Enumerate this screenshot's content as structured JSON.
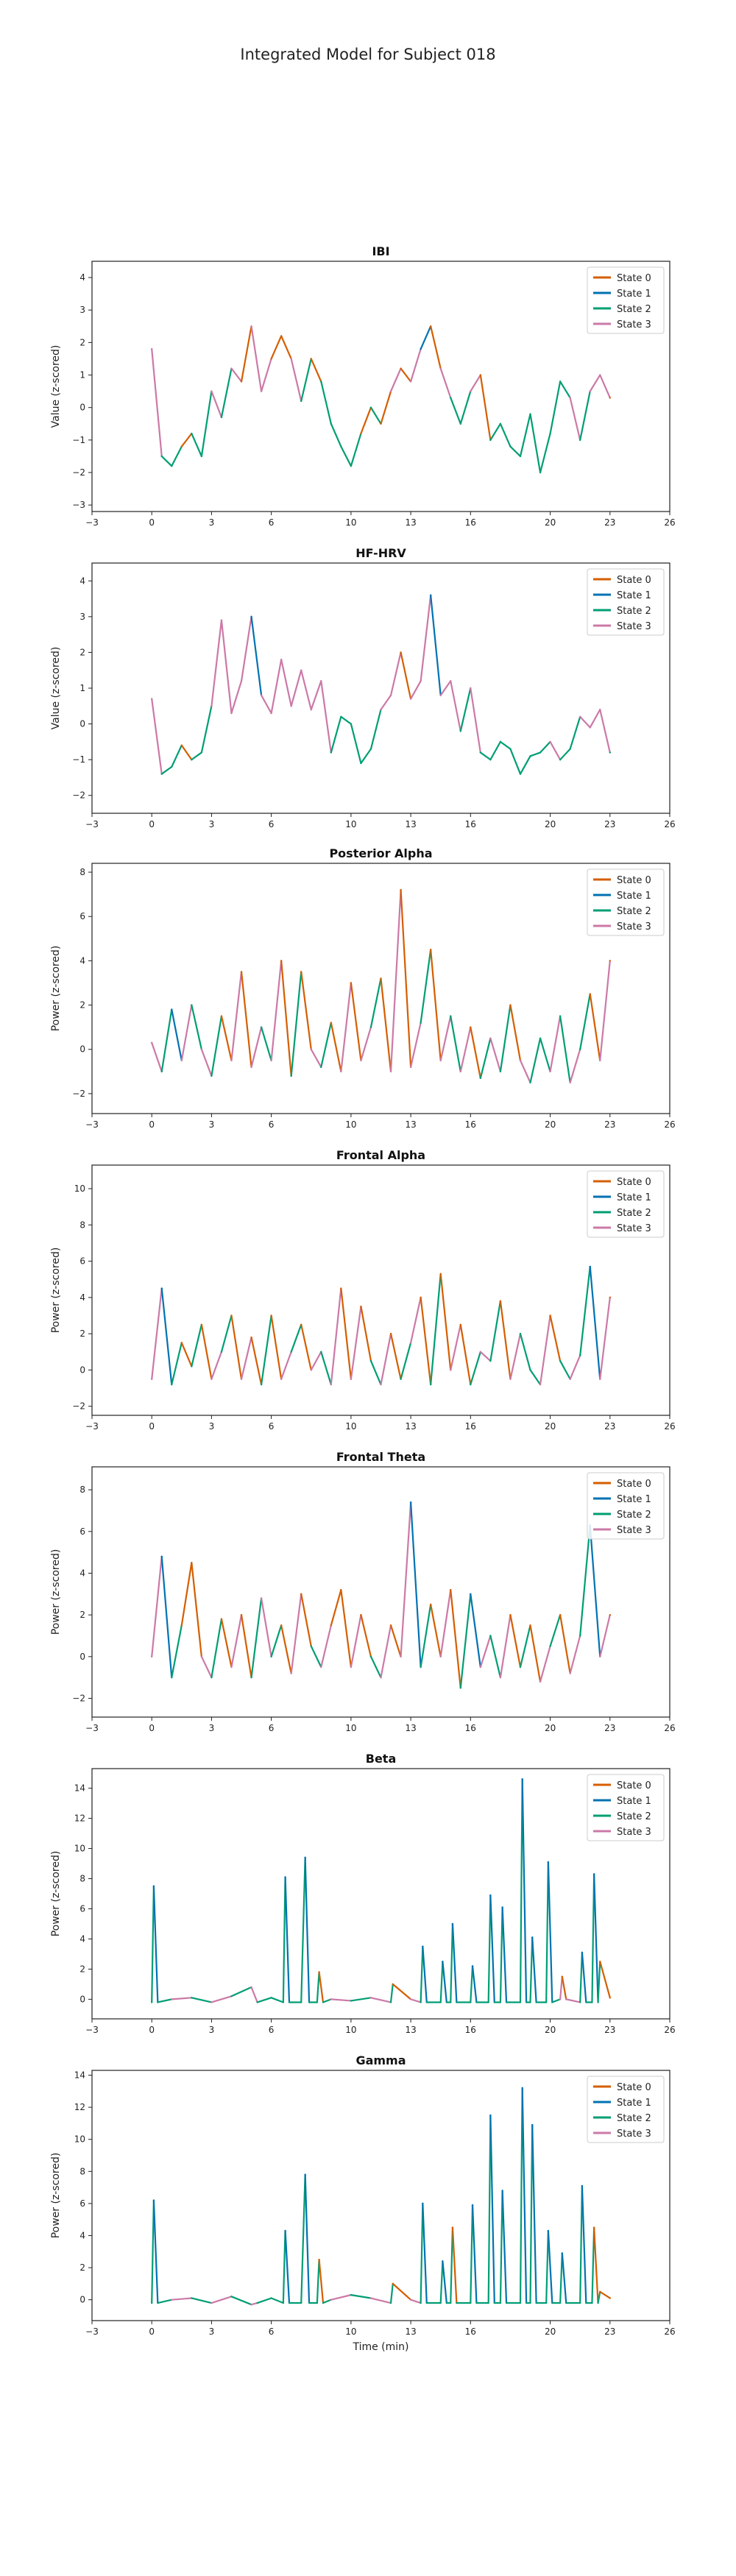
{
  "figure": {
    "title": "Integrated Model for Subject 018"
  },
  "state_colors": {
    "State 0": "#D55E00",
    "State 1": "#0072B2",
    "State 2": "#009E73",
    "State 3": "#CC79A7"
  },
  "chart_data": [
    {
      "type": "line",
      "title": "IBI",
      "xlabel": "",
      "ylabel": "Value (z-scored)",
      "xlim": [
        -3,
        26
      ],
      "ylim": [
        -3.2,
        4.5
      ],
      "xticks": [
        -3,
        0,
        3,
        6,
        10,
        13,
        16,
        20,
        23,
        26
      ],
      "yticks": [
        -3,
        -2,
        -1,
        0,
        1,
        2,
        3,
        4
      ],
      "legend": {
        "placement": "top-right",
        "entries": [
          "State 0",
          "State 1",
          "State 2",
          "State 3"
        ]
      },
      "grid": false,
      "x": [
        0,
        0.5,
        1,
        1.5,
        2,
        2.5,
        3,
        3.5,
        4,
        4.5,
        5,
        5.5,
        6,
        6.5,
        7,
        7.5,
        8,
        8.5,
        9,
        9.5,
        10,
        10.5,
        11,
        11.5,
        12,
        12.5,
        13,
        13.5,
        14,
        14.5,
        15,
        15.5,
        16,
        16.5,
        17,
        17.5,
        18,
        18.5,
        19,
        19.5,
        20,
        20.5,
        21,
        21.5,
        22,
        22.5,
        23
      ],
      "y": [
        1.8,
        -1.5,
        -1.8,
        -1.2,
        -0.8,
        -1.5,
        0.5,
        -0.3,
        1.2,
        0.8,
        2.5,
        0.5,
        1.5,
        2.2,
        1.5,
        0.2,
        1.5,
        0.8,
        -0.5,
        -1.2,
        -1.8,
        -0.8,
        0.0,
        -0.5,
        0.5,
        1.2,
        0.8,
        1.8,
        2.5,
        1.2,
        0.3,
        -0.5,
        0.5,
        1.0,
        -1.0,
        -0.5,
        -1.2,
        -1.5,
        -0.2,
        -2.0,
        -0.8,
        0.8,
        0.3,
        -1.0,
        0.5,
        1.0,
        0.3
      ],
      "states": [
        3,
        2,
        2,
        0,
        2,
        2,
        3,
        2,
        3,
        0,
        3,
        3,
        0,
        0,
        3,
        2,
        0,
        2,
        2,
        2,
        2,
        0,
        2,
        0,
        3,
        0,
        3,
        1,
        0,
        3,
        2,
        2,
        3,
        0,
        2,
        2,
        2,
        2,
        2,
        2,
        2,
        2,
        3,
        2,
        3,
        3,
        0
      ]
    },
    {
      "type": "line",
      "title": "HF-HRV",
      "xlabel": "",
      "ylabel": "Value (z-scored)",
      "xlim": [
        -3,
        26
      ],
      "ylim": [
        -2.5,
        4.5
      ],
      "xticks": [
        -3,
        0,
        3,
        6,
        10,
        13,
        16,
        20,
        23,
        26
      ],
      "yticks": [
        -2,
        -1,
        0,
        1,
        2,
        3,
        4
      ],
      "legend": {
        "placement": "top-right",
        "entries": [
          "State 0",
          "State 1",
          "State 2",
          "State 3"
        ]
      },
      "grid": false,
      "x": [
        0,
        0.5,
        1,
        1.5,
        2,
        2.5,
        3,
        3.5,
        4,
        4.5,
        5,
        5.5,
        6,
        6.5,
        7,
        7.5,
        8,
        8.5,
        9,
        9.5,
        10,
        10.5,
        11,
        11.5,
        12,
        12.5,
        13,
        13.5,
        14,
        14.5,
        15,
        15.5,
        16,
        16.5,
        17,
        17.5,
        18,
        18.5,
        19,
        19.5,
        20,
        20.5,
        21,
        21.5,
        22,
        22.5,
        23
      ],
      "y": [
        0.7,
        -1.4,
        -1.2,
        -0.6,
        -1.0,
        -0.8,
        0.5,
        2.9,
        0.3,
        1.2,
        3.0,
        0.8,
        0.3,
        1.8,
        0.5,
        1.5,
        0.4,
        1.2,
        -0.8,
        0.2,
        0.0,
        -1.1,
        -0.7,
        0.4,
        0.8,
        2.0,
        0.7,
        1.2,
        3.6,
        0.8,
        1.2,
        -0.2,
        1.0,
        -0.8,
        -1.0,
        -0.5,
        -0.7,
        -1.4,
        -0.9,
        -0.8,
        -0.5,
        -1.0,
        -0.7,
        0.2,
        -0.1,
        0.4,
        -0.8
      ],
      "states": [
        3,
        2,
        2,
        0,
        2,
        2,
        3,
        3,
        3,
        3,
        1,
        3,
        3,
        3,
        3,
        3,
        3,
        3,
        2,
        2,
        2,
        2,
        2,
        3,
        3,
        0,
        3,
        3,
        1,
        3,
        3,
        2,
        3,
        2,
        2,
        2,
        2,
        2,
        2,
        2,
        3,
        2,
        2,
        3,
        3,
        3,
        2
      ]
    },
    {
      "type": "line",
      "title": "Posterior Alpha",
      "xlabel": "",
      "ylabel": "Power (z-scored)",
      "xlim": [
        -3,
        26
      ],
      "ylim": [
        -2.9,
        8.4
      ],
      "xticks": [
        -3,
        0,
        3,
        6,
        10,
        13,
        16,
        20,
        23,
        26
      ],
      "yticks": [
        -2,
        0,
        2,
        4,
        6,
        8
      ],
      "legend": {
        "placement": "top-right",
        "entries": [
          "State 0",
          "State 1",
          "State 2",
          "State 3"
        ]
      },
      "grid": false,
      "x": [
        0,
        0.5,
        1,
        1.5,
        2,
        2.5,
        3,
        3.5,
        4,
        4.5,
        5,
        5.5,
        6,
        6.5,
        7,
        7.5,
        8,
        8.5,
        9,
        9.5,
        10,
        10.5,
        11,
        11.5,
        12,
        12.5,
        13,
        13.5,
        14,
        14.5,
        15,
        15.5,
        16,
        16.5,
        17,
        17.5,
        18,
        18.5,
        19,
        19.5,
        20,
        20.5,
        21,
        21.5,
        22,
        22.5,
        23
      ],
      "y": [
        0.3,
        -1.0,
        1.8,
        -0.5,
        2.0,
        0.0,
        -1.2,
        1.5,
        -0.5,
        3.5,
        -0.8,
        1.0,
        -0.5,
        4.0,
        -1.2,
        3.5,
        0.0,
        -0.8,
        1.2,
        -1.0,
        3.0,
        -0.5,
        1.0,
        3.2,
        -1.0,
        7.2,
        -0.8,
        1.2,
        4.5,
        -0.5,
        1.5,
        -1.0,
        1.0,
        -1.3,
        0.5,
        -1.0,
        2.0,
        -0.5,
        -1.5,
        0.5,
        -1.0,
        1.5,
        -1.5,
        0.0,
        2.5,
        -0.5,
        4.0
      ],
      "states": [
        3,
        2,
        1,
        3,
        2,
        3,
        2,
        0,
        3,
        0,
        3,
        2,
        3,
        0,
        2,
        0,
        3,
        2,
        0,
        3,
        0,
        3,
        2,
        0,
        3,
        0,
        3,
        2,
        0,
        3,
        2,
        3,
        0,
        2,
        3,
        2,
        0,
        3,
        2,
        2,
        3,
        2,
        3,
        2,
        0,
        3,
        0
      ]
    },
    {
      "type": "line",
      "title": "Frontal Alpha",
      "xlabel": "",
      "ylabel": "Power (z-scored)",
      "xlim": [
        -3,
        26
      ],
      "ylim": [
        -2.5,
        11.3
      ],
      "xticks": [
        -3,
        0,
        3,
        6,
        10,
        13,
        16,
        20,
        23,
        26
      ],
      "yticks": [
        -2,
        0,
        2,
        4,
        6,
        8,
        10
      ],
      "legend": {
        "placement": "top-right",
        "entries": [
          "State 0",
          "State 1",
          "State 2",
          "State 3"
        ]
      },
      "grid": false,
      "x": [
        0,
        0.5,
        1,
        1.5,
        2,
        2.5,
        3,
        3.5,
        4,
        4.5,
        5,
        5.5,
        6,
        6.5,
        7,
        7.5,
        8,
        8.5,
        9,
        9.5,
        10,
        10.5,
        11,
        11.5,
        12,
        12.5,
        13,
        13.5,
        14,
        14.5,
        15,
        15.5,
        16,
        16.5,
        17,
        17.5,
        18,
        18.5,
        19,
        19.5,
        20,
        20.5,
        21,
        21.5,
        22,
        22.5,
        23
      ],
      "y": [
        -0.5,
        4.5,
        -0.8,
        1.5,
        0.2,
        2.5,
        -0.5,
        1.0,
        3.0,
        -0.5,
        1.8,
        -0.8,
        3.0,
        -0.5,
        1.0,
        2.5,
        0.0,
        1.0,
        -0.8,
        4.5,
        -0.5,
        3.5,
        0.5,
        -0.8,
        2.0,
        -0.5,
        1.5,
        4.0,
        -0.8,
        5.3,
        0.0,
        2.5,
        -0.8,
        1.0,
        0.5,
        3.8,
        -0.5,
        2.0,
        0.0,
        -0.8,
        3.0,
        0.5,
        -0.5,
        0.8,
        5.7,
        -0.5,
        4.0
      ],
      "states": [
        3,
        1,
        2,
        0,
        2,
        0,
        3,
        2,
        0,
        3,
        0,
        2,
        0,
        3,
        2,
        0,
        3,
        2,
        3,
        0,
        3,
        0,
        2,
        3,
        0,
        2,
        3,
        0,
        2,
        0,
        3,
        0,
        2,
        3,
        2,
        0,
        3,
        2,
        2,
        3,
        0,
        2,
        3,
        2,
        1,
        3,
        0
      ]
    },
    {
      "type": "line",
      "title": "Frontal Theta",
      "xlabel": "",
      "ylabel": "Power (z-scored)",
      "xlim": [
        -3,
        26
      ],
      "ylim": [
        -2.9,
        9.1
      ],
      "xticks": [
        -3,
        0,
        3,
        6,
        10,
        13,
        16,
        20,
        23,
        26
      ],
      "yticks": [
        -2,
        0,
        2,
        4,
        6,
        8
      ],
      "legend": {
        "placement": "top-right",
        "entries": [
          "State 0",
          "State 1",
          "State 2",
          "State 3"
        ]
      },
      "grid": false,
      "x": [
        0,
        0.5,
        1,
        1.5,
        2,
        2.5,
        3,
        3.5,
        4,
        4.5,
        5,
        5.5,
        6,
        6.5,
        7,
        7.5,
        8,
        8.5,
        9,
        9.5,
        10,
        10.5,
        11,
        11.5,
        12,
        12.5,
        13,
        13.5,
        14,
        14.5,
        15,
        15.5,
        16,
        16.5,
        17,
        17.5,
        18,
        18.5,
        19,
        19.5,
        20,
        20.5,
        21,
        21.5,
        22,
        22.5,
        23
      ],
      "y": [
        0.0,
        4.8,
        -1.0,
        1.5,
        4.5,
        0.0,
        -1.0,
        1.8,
        -0.5,
        2.0,
        -1.0,
        2.8,
        0.0,
        1.5,
        -0.8,
        3.0,
        0.5,
        -0.5,
        1.5,
        3.2,
        -0.5,
        2.0,
        0.0,
        -1.0,
        1.5,
        0.0,
        7.4,
        -0.5,
        2.5,
        0.0,
        3.2,
        -1.5,
        3.0,
        -0.5,
        1.0,
        -1.0,
        2.0,
        -0.5,
        1.5,
        -1.2,
        0.5,
        2.0,
        -0.8,
        1.0,
        6.3,
        0.0,
        2.0
      ],
      "states": [
        3,
        1,
        2,
        0,
        0,
        3,
        2,
        0,
        3,
        0,
        2,
        3,
        2,
        0,
        3,
        0,
        2,
        3,
        0,
        0,
        3,
        0,
        2,
        3,
        0,
        3,
        1,
        2,
        0,
        3,
        0,
        2,
        1,
        3,
        2,
        3,
        0,
        2,
        0,
        3,
        2,
        0,
        3,
        2,
        1,
        3,
        0
      ]
    },
    {
      "type": "line",
      "title": "Beta",
      "xlabel": "",
      "ylabel": "Power (z-scored)",
      "xlim": [
        -3,
        26
      ],
      "ylim": [
        -1.3,
        15.3
      ],
      "xticks": [
        -3,
        0,
        3,
        6,
        10,
        13,
        16,
        20,
        23,
        26
      ],
      "yticks": [
        0,
        2,
        4,
        6,
        8,
        10,
        12,
        14
      ],
      "legend": {
        "placement": "top-right",
        "entries": [
          "State 0",
          "State 1",
          "State 2",
          "State 3"
        ]
      },
      "grid": false,
      "x": [
        0,
        0.1,
        0.3,
        1,
        2,
        3,
        4,
        5,
        5.3,
        6,
        6.6,
        6.7,
        6.9,
        7.5,
        7.7,
        7.9,
        8.3,
        8.4,
        8.6,
        9,
        10,
        11,
        12,
        12.1,
        13,
        13.5,
        13.6,
        13.8,
        14.5,
        14.6,
        14.8,
        15,
        15.1,
        15.3,
        16,
        16.1,
        16.3,
        16.9,
        17,
        17.2,
        17.5,
        17.6,
        17.8,
        18.5,
        18.6,
        18.8,
        19,
        19.1,
        19.3,
        19.8,
        19.9,
        20.1,
        20.5,
        20.6,
        20.8,
        21.5,
        21.6,
        21.8,
        22.1,
        22.2,
        22.4,
        22.5,
        23
      ],
      "y": [
        -0.2,
        7.5,
        -0.2,
        0.0,
        0.1,
        -0.2,
        0.2,
        0.8,
        -0.2,
        0.1,
        -0.2,
        8.1,
        -0.2,
        -0.2,
        9.4,
        -0.2,
        -0.2,
        1.8,
        -0.2,
        0.0,
        -0.1,
        0.1,
        -0.2,
        1.0,
        0.0,
        -0.2,
        3.5,
        -0.2,
        -0.2,
        2.5,
        -0.2,
        -0.2,
        5.0,
        -0.2,
        -0.2,
        2.2,
        -0.2,
        -0.2,
        6.9,
        -0.2,
        -0.2,
        6.1,
        -0.2,
        -0.2,
        14.6,
        -0.2,
        -0.2,
        4.1,
        -0.2,
        -0.2,
        9.1,
        -0.2,
        0.0,
        1.5,
        0.0,
        -0.2,
        3.1,
        -0.2,
        -0.2,
        8.3,
        -0.2,
        2.5,
        0.1
      ],
      "states": [
        2,
        1,
        2,
        3,
        2,
        3,
        2,
        3,
        2,
        2,
        2,
        1,
        2,
        2,
        1,
        2,
        2,
        0,
        2,
        3,
        2,
        3,
        2,
        0,
        3,
        2,
        1,
        2,
        2,
        1,
        2,
        2,
        1,
        2,
        2,
        1,
        2,
        2,
        1,
        2,
        2,
        1,
        2,
        2,
        1,
        2,
        2,
        1,
        2,
        2,
        1,
        2,
        3,
        0,
        3,
        2,
        1,
        2,
        2,
        1,
        2,
        0,
        0
      ]
    },
    {
      "type": "line",
      "title": "Gamma",
      "xlabel": "Time (min)",
      "ylabel": "Power (z-scored)",
      "xlim": [
        -3,
        26
      ],
      "ylim": [
        -1.3,
        14.3
      ],
      "xticks": [
        -3,
        0,
        3,
        6,
        10,
        13,
        16,
        20,
        23,
        26
      ],
      "yticks": [
        0,
        2,
        4,
        6,
        8,
        10,
        12,
        14
      ],
      "legend": {
        "placement": "top-right",
        "entries": [
          "State 0",
          "State 1",
          "State 2",
          "State 3"
        ]
      },
      "grid": false,
      "x": [
        0,
        0.1,
        0.3,
        1,
        2,
        3,
        4,
        5,
        5.3,
        6,
        6.6,
        6.7,
        6.9,
        7.5,
        7.7,
        7.9,
        8.3,
        8.4,
        8.6,
        9,
        10,
        11,
        12,
        12.1,
        13,
        13.5,
        13.6,
        13.8,
        14.5,
        14.6,
        14.8,
        15,
        15.1,
        15.3,
        16,
        16.1,
        16.3,
        16.9,
        17,
        17.2,
        17.5,
        17.6,
        17.8,
        18.5,
        18.6,
        18.8,
        19,
        19.1,
        19.3,
        19.8,
        19.9,
        20.1,
        20.5,
        20.6,
        20.8,
        21.5,
        21.6,
        21.8,
        22.1,
        22.2,
        22.4,
        22.5,
        23
      ],
      "y": [
        -0.2,
        6.2,
        -0.2,
        0.0,
        0.1,
        -0.2,
        0.2,
        -0.3,
        -0.2,
        0.1,
        -0.2,
        4.3,
        -0.2,
        -0.2,
        7.8,
        -0.2,
        -0.2,
        2.5,
        -0.2,
        0.0,
        0.3,
        0.1,
        -0.2,
        1.0,
        0.0,
        -0.2,
        6.0,
        -0.2,
        -0.2,
        2.4,
        -0.2,
        -0.2,
        4.5,
        -0.2,
        -0.2,
        5.9,
        -0.2,
        -0.2,
        11.5,
        -0.2,
        -0.2,
        6.8,
        -0.2,
        -0.2,
        13.2,
        -0.2,
        -0.2,
        10.9,
        -0.2,
        -0.2,
        4.3,
        -0.2,
        -0.2,
        2.9,
        -0.2,
        -0.2,
        7.1,
        -0.2,
        -0.2,
        4.5,
        -0.2,
        0.5,
        0.1
      ],
      "states": [
        2,
        1,
        2,
        3,
        2,
        3,
        2,
        3,
        2,
        2,
        2,
        1,
        2,
        2,
        1,
        2,
        2,
        0,
        2,
        3,
        2,
        3,
        2,
        0,
        3,
        2,
        1,
        2,
        2,
        1,
        2,
        2,
        0,
        2,
        2,
        1,
        2,
        2,
        1,
        2,
        2,
        1,
        2,
        2,
        1,
        2,
        2,
        1,
        2,
        2,
        1,
        2,
        2,
        1,
        2,
        2,
        1,
        2,
        2,
        0,
        2,
        0,
        0
      ]
    }
  ]
}
